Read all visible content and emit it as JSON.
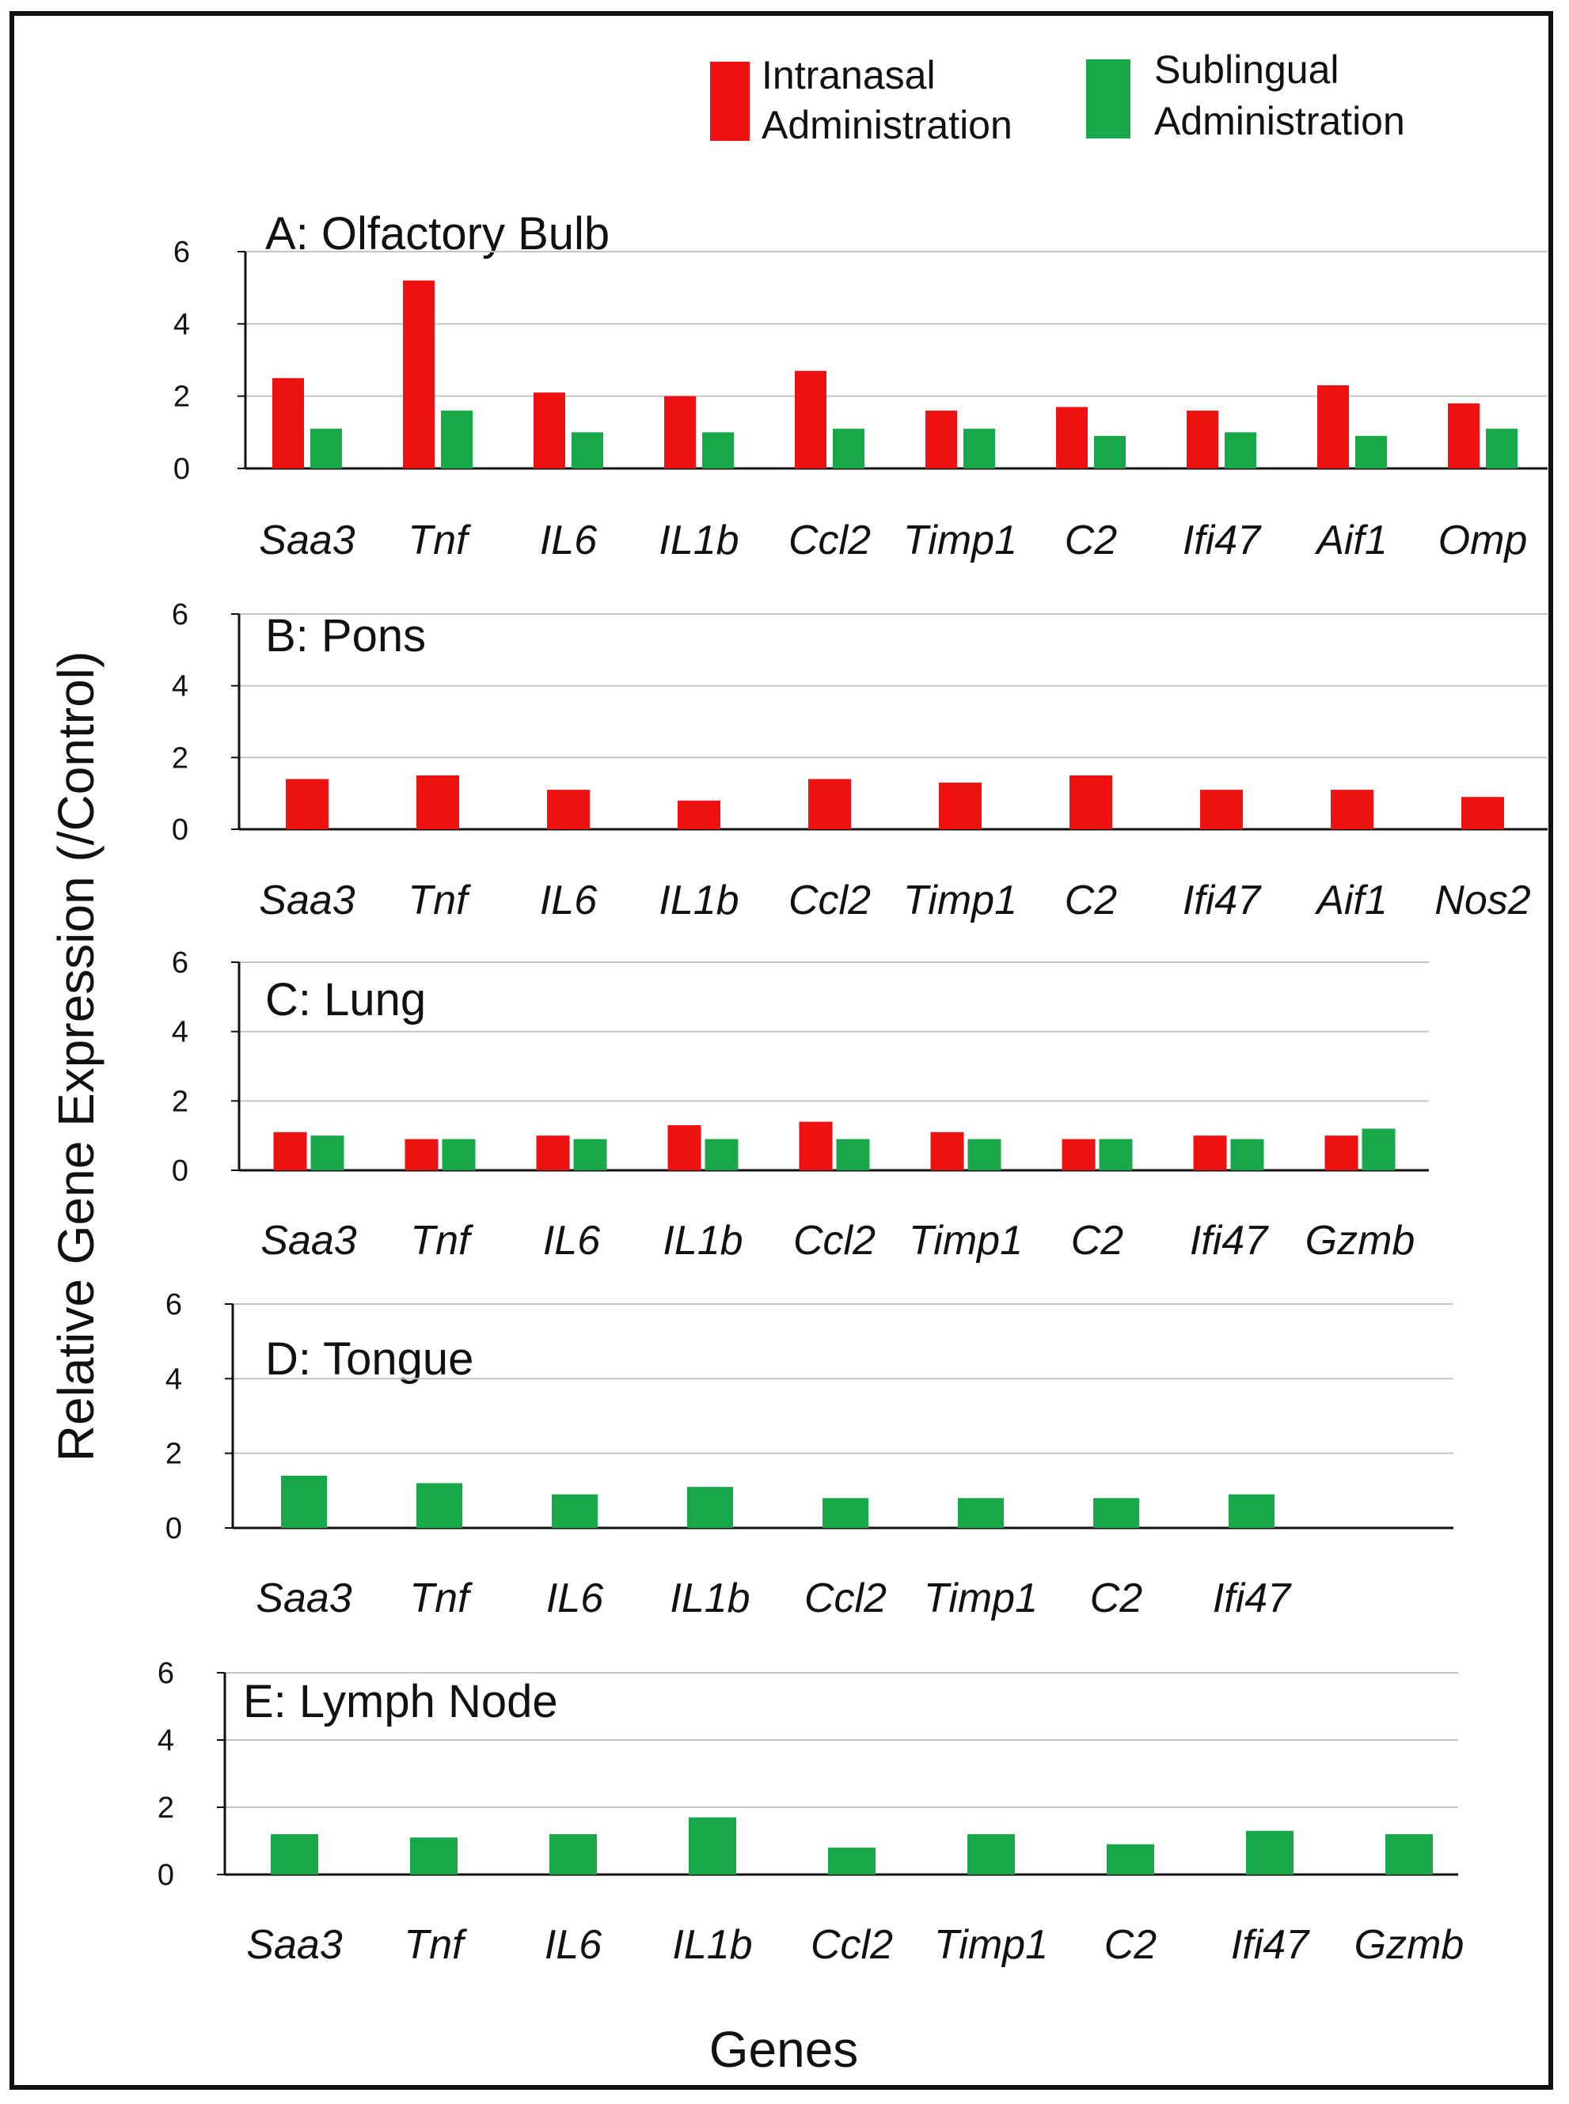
{
  "chart_data": {
    "type": "bar",
    "ylabel": "Relative Gene Expression (/Control)",
    "xlabel": "Genes",
    "colors": {
      "intranasal": "#ee1111",
      "sublingual": "#18a84a"
    },
    "legend": [
      {
        "key": "intranasal",
        "line1": "Intranasal",
        "line2": "Administration"
      },
      {
        "key": "sublingual",
        "line1": "Sublingual",
        "line2": "Administration"
      }
    ],
    "panels": [
      {
        "title": "A: Olfactory Bulb",
        "ylim": [
          0,
          6
        ],
        "yticks": [
          0,
          2,
          4,
          6
        ],
        "categories": [
          "Saa3",
          "Tnf",
          "IL6",
          "IL1b",
          "Ccl2",
          "Timp1",
          "C2",
          "Ifi47",
          "Aif1",
          "Omp"
        ],
        "series": [
          {
            "name": "Intranasal Administration",
            "key": "intranasal",
            "values": [
              2.5,
              5.2,
              2.1,
              2.0,
              2.7,
              1.6,
              1.7,
              1.6,
              2.3,
              1.8
            ]
          },
          {
            "name": "Sublingual Administration",
            "key": "sublingual",
            "values": [
              1.1,
              1.6,
              1.0,
              1.0,
              1.1,
              1.1,
              0.9,
              1.0,
              0.9,
              1.1
            ]
          }
        ]
      },
      {
        "title": "B: Pons",
        "ylim": [
          0,
          6
        ],
        "yticks": [
          0,
          2,
          4,
          6
        ],
        "categories": [
          "Saa3",
          "Tnf",
          "IL6",
          "IL1b",
          "Ccl2",
          "Timp1",
          "C2",
          "Ifi47",
          "Aif1",
          "Nos2"
        ],
        "series": [
          {
            "name": "Intranasal Administration",
            "key": "intranasal",
            "values": [
              1.4,
              1.5,
              1.1,
              0.8,
              1.4,
              1.3,
              1.5,
              1.1,
              1.1,
              0.9
            ]
          }
        ]
      },
      {
        "title": "C: Lung",
        "ylim": [
          0,
          6
        ],
        "yticks": [
          0,
          2,
          4,
          6
        ],
        "categories": [
          "Saa3",
          "Tnf",
          "IL6",
          "IL1b",
          "Ccl2",
          "Timp1",
          "C2",
          "Ifi47",
          "Gzmb"
        ],
        "series": [
          {
            "name": "Intranasal Administration",
            "key": "intranasal",
            "values": [
              1.1,
              0.9,
              1.0,
              1.3,
              1.4,
              1.1,
              0.9,
              1.0,
              1.0
            ]
          },
          {
            "name": "Sublingual Administration",
            "key": "sublingual",
            "values": [
              1.0,
              0.9,
              0.9,
              0.9,
              0.9,
              0.9,
              0.9,
              0.9,
              1.2
            ]
          }
        ]
      },
      {
        "title": "D: Tongue",
        "ylim": [
          0,
          6
        ],
        "yticks": [
          0,
          2,
          4,
          6
        ],
        "categories": [
          "Saa3",
          "Tnf",
          "IL6",
          "IL1b",
          "Ccl2",
          "Timp1",
          "C2",
          "Ifi47"
        ],
        "series": [
          {
            "name": "Sublingual Administration",
            "key": "sublingual",
            "values": [
              1.4,
              1.2,
              0.9,
              1.1,
              0.8,
              0.8,
              0.8,
              0.9
            ]
          }
        ]
      },
      {
        "title": "E: Lymph Node",
        "ylim": [
          0,
          6
        ],
        "yticks": [
          0,
          2,
          4,
          6
        ],
        "categories": [
          "Saa3",
          "Tnf",
          "IL6",
          "IL1b",
          "Ccl2",
          "Timp1",
          "C2",
          "Ifi47",
          "Gzmb"
        ],
        "series": [
          {
            "name": "Sublingual Administration",
            "key": "sublingual",
            "values": [
              1.2,
              1.1,
              1.2,
              1.7,
              0.8,
              1.2,
              0.9,
              1.3,
              1.2
            ]
          }
        ]
      }
    ]
  }
}
